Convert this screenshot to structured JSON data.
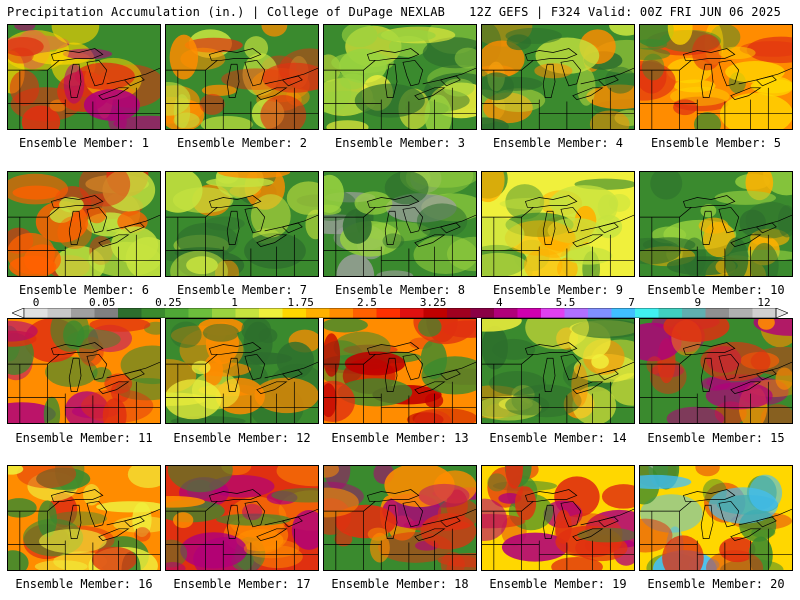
{
  "header": {
    "left": "Precipitation Accumulation (in.) | College of DuPage NEXLAB",
    "right": "12Z GEFS | F324 Valid: 00Z FRI JUN 06 2025"
  },
  "panels": [
    {
      "label": "Ensemble Member: 1"
    },
    {
      "label": "Ensemble Member: 2"
    },
    {
      "label": "Ensemble Member: 3"
    },
    {
      "label": "Ensemble Member: 4"
    },
    {
      "label": "Ensemble Member: 5"
    },
    {
      "label": "Ensemble Member: 6"
    },
    {
      "label": "Ensemble Member: 7"
    },
    {
      "label": "Ensemble Member: 8"
    },
    {
      "label": "Ensemble Member: 9"
    },
    {
      "label": "Ensemble Member: 10"
    },
    {
      "label": "Ensemble Member: 11"
    },
    {
      "label": "Ensemble Member: 12"
    },
    {
      "label": "Ensemble Member: 13"
    },
    {
      "label": "Ensemble Member: 14"
    },
    {
      "label": "Ensemble Member: 15"
    },
    {
      "label": "Ensemble Member: 16"
    },
    {
      "label": "Ensemble Member: 17"
    },
    {
      "label": "Ensemble Member: 18"
    },
    {
      "label": "Ensemble Member: 19"
    },
    {
      "label": "Ensemble Member: 20"
    }
  ],
  "colorbar": {
    "ticks": [
      "0",
      "0.05",
      "0.25",
      "1",
      "1.75",
      "2.5",
      "3.25",
      "4",
      "5.5",
      "7",
      "9",
      "12"
    ],
    "colors": [
      "#e0e0e0",
      "#c8c8c8",
      "#a0a0a0",
      "#808080",
      "#2d6e2d",
      "#3a8a2e",
      "#4fa836",
      "#6cbf3c",
      "#9ad33f",
      "#c6e33f",
      "#f0f03c",
      "#ffd700",
      "#ffb000",
      "#ff8c00",
      "#ff6000",
      "#ff3000",
      "#e01010",
      "#c00000",
      "#a00020",
      "#8b0045",
      "#b0007a",
      "#d000b0",
      "#e040f0",
      "#b070ff",
      "#8090ff",
      "#40c0ff",
      "#40f0f0",
      "#40d0c0",
      "#60b0b0",
      "#909090",
      "#b0b0b0",
      "#d0d0d0"
    ]
  }
}
